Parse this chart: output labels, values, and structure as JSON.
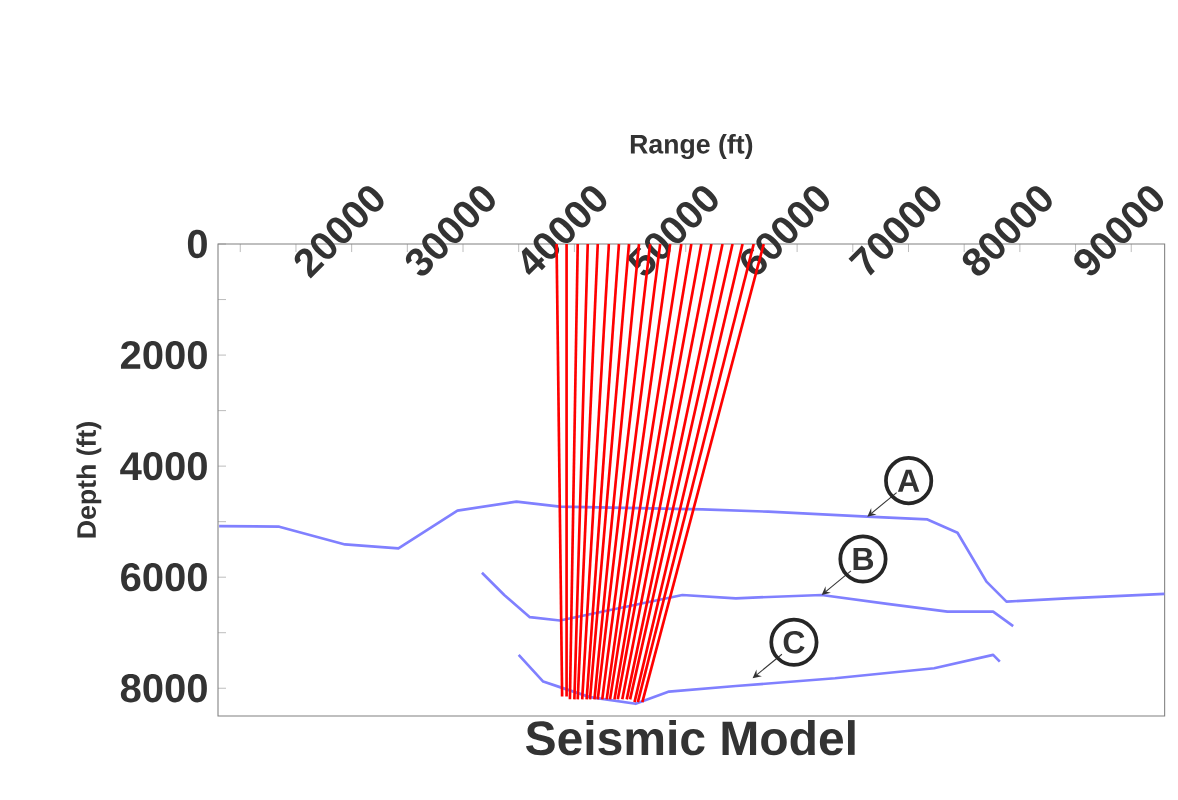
{
  "chart_data": {
    "type": "line",
    "title": "Seismic Model",
    "xlabel": "Range (ft)",
    "ylabel": "Depth (ft)",
    "xlim": [
      8000,
      93000
    ],
    "ylim": [
      8500,
      0
    ],
    "xticks": [
      {
        "value": 10000,
        "label": null
      },
      {
        "value": 15000,
        "label": null
      },
      20000,
      {
        "value": 25000,
        "label": null
      },
      30000,
      {
        "value": 35000,
        "label": null
      },
      40000,
      {
        "value": 45000,
        "label": null
      },
      50000,
      {
        "value": 55000,
        "label": null
      },
      60000,
      {
        "value": 65000,
        "label": null
      },
      70000,
      {
        "value": 75000,
        "label": null
      },
      80000,
      {
        "value": 85000,
        "label": null
      },
      90000
    ],
    "yticks": [
      0,
      {
        "value": 1000,
        "label": null
      },
      2000,
      {
        "value": 3000,
        "label": null
      },
      4000,
      {
        "value": 5000,
        "label": null
      },
      6000,
      {
        "value": 7000,
        "label": null
      },
      8000
    ],
    "marker": "none",
    "line_style": "solid",
    "annotations": [
      {
        "text": "A",
        "x": 66300,
        "y": 4910
      },
      {
        "text": "B",
        "x": 62200,
        "y": 6320
      },
      {
        "text": "C",
        "x": 56000,
        "y": 7820
      }
    ],
    "series": [
      {
        "color": "#8080ff",
        "x": [
          8100,
          13500,
          19400,
          24200,
          29500,
          34800,
          38700,
          51500,
          57400,
          66300,
          71700,
          74400,
          77000,
          78800,
          84200,
          93000
        ],
        "values": [
          5080,
          5090,
          5410,
          5480,
          4800,
          4640,
          4730,
          4780,
          4820,
          4910,
          4960,
          5200,
          6080,
          6440,
          6380,
          6300
        ]
      },
      {
        "color": "#8080ff",
        "x": [
          31700,
          33700,
          36000,
          38700,
          49700,
          54500,
          62200,
          68100,
          73500,
          77600,
          79400
        ],
        "values": [
          5920,
          6320,
          6720,
          6780,
          6320,
          6380,
          6320,
          6480,
          6620,
          6620,
          6880
        ]
      },
      {
        "color": "#8080ff",
        "x": [
          35000,
          37200,
          38700,
          41400,
          45500,
          48500,
          54500,
          63400,
          72300,
          77600,
          78200
        ],
        "values": [
          7400,
          7880,
          7980,
          8160,
          8280,
          8060,
          7960,
          7820,
          7640,
          7400,
          7520
        ]
      },
      {
        "color": "#ff0000",
        "x": [
          38400,
          38900
        ],
        "values": [
          0,
          8150
        ]
      },
      {
        "color": "#ff0000",
        "x": [
          39300,
          39300
        ],
        "values": [
          0,
          8150
        ]
      },
      {
        "color": "#ff0000",
        "x": [
          40300,
          39600
        ],
        "values": [
          0,
          8200
        ]
      },
      {
        "color": "#ff0000",
        "x": [
          41200,
          40000
        ],
        "values": [
          0,
          8200
        ]
      },
      {
        "color": "#ff0000",
        "x": [
          42100,
          40300
        ],
        "values": [
          0,
          8200
        ]
      },
      {
        "color": "#ff0000",
        "x": [
          43100,
          40700
        ],
        "values": [
          0,
          8200
        ]
      },
      {
        "color": "#ff0000",
        "x": [
          44000,
          41100
        ],
        "values": [
          0,
          8200
        ]
      },
      {
        "color": "#ff0000",
        "x": [
          44900,
          41400
        ],
        "values": [
          0,
          8200
        ]
      },
      {
        "color": "#ff0000",
        "x": [
          45800,
          41800
        ],
        "values": [
          0,
          8200
        ]
      },
      {
        "color": "#ff0000",
        "x": [
          46800,
          42100
        ],
        "values": [
          0,
          8200
        ]
      },
      {
        "color": "#ff0000",
        "x": [
          47700,
          42500
        ],
        "values": [
          0,
          8200
        ]
      },
      {
        "color": "#ff0000",
        "x": [
          48600,
          42900
        ],
        "values": [
          0,
          8200
        ]
      },
      {
        "color": "#ff0000",
        "x": [
          49600,
          43200
        ],
        "values": [
          0,
          8200
        ]
      },
      {
        "color": "#ff0000",
        "x": [
          50500,
          43600
        ],
        "values": [
          0,
          8200
        ]
      },
      {
        "color": "#ff0000",
        "x": [
          51400,
          43900
        ],
        "values": [
          0,
          8200
        ]
      },
      {
        "color": "#ff0000",
        "x": [
          52300,
          44300
        ],
        "values": [
          0,
          8200
        ]
      },
      {
        "color": "#ff0000",
        "x": [
          53300,
          44700
        ],
        "values": [
          0,
          8200
        ]
      },
      {
        "color": "#ff0000",
        "x": [
          54200,
          45000
        ],
        "values": [
          0,
          8200
        ]
      },
      {
        "color": "#ff0000",
        "x": [
          55100,
          45400
        ],
        "values": [
          0,
          8250
        ]
      },
      {
        "color": "#ff0000",
        "x": [
          56100,
          45700
        ],
        "values": [
          0,
          8250
        ]
      },
      {
        "color": "#ff0000",
        "x": [
          57000,
          46100
        ],
        "values": [
          0,
          8250
        ]
      }
    ]
  }
}
